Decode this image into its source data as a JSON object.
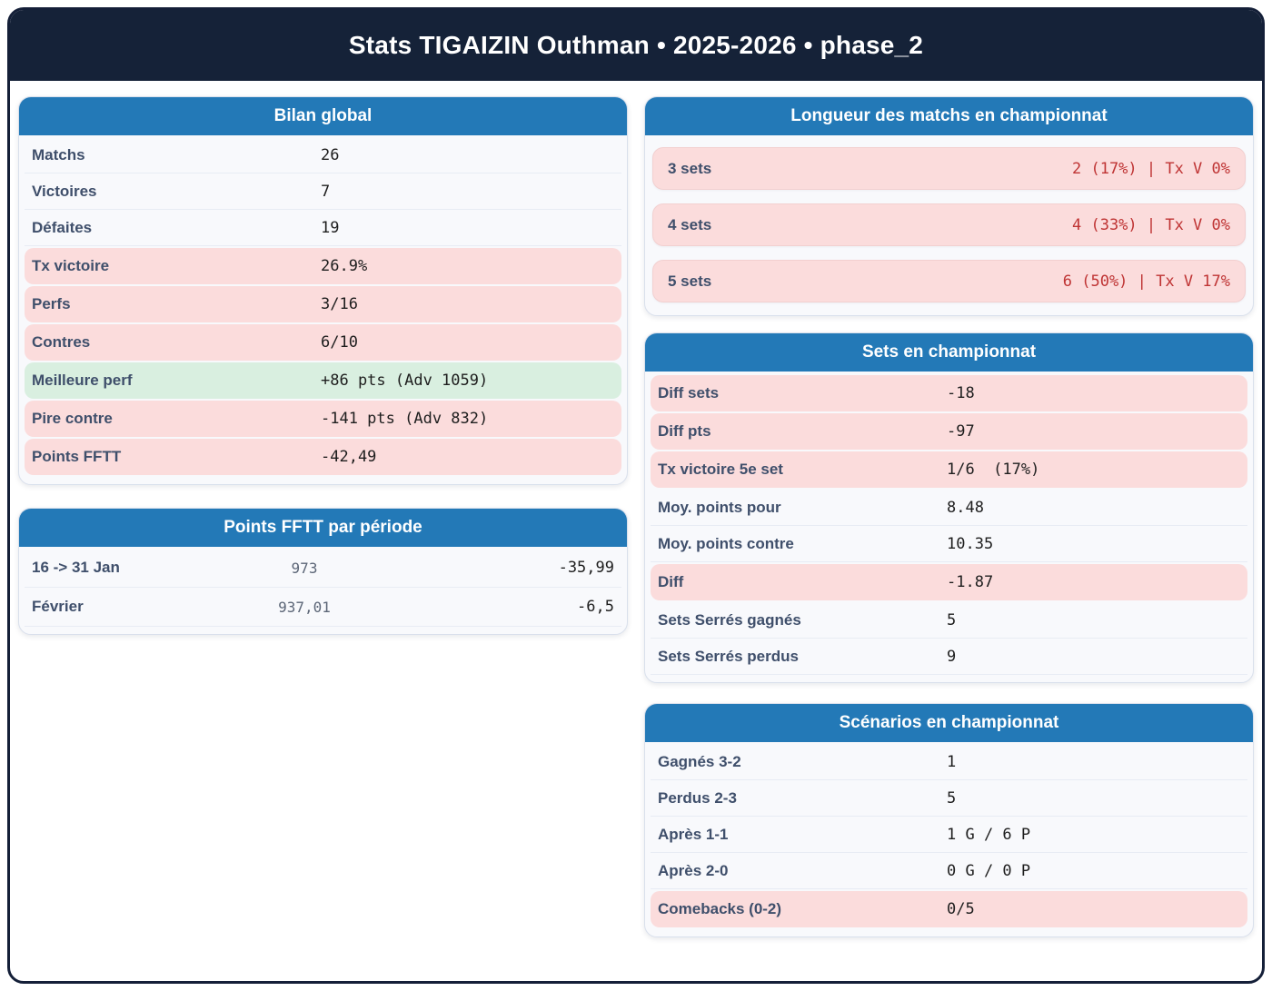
{
  "header": {
    "title": "Stats TIGAIZIN Outhman • 2025-2026 • phase_2"
  },
  "colors": {
    "header_navy": "#152238",
    "card_header_blue": "#2379b7",
    "negative_row_pink": "#fbdcdc",
    "positive_row_green": "#d9efe0",
    "negative_value_red": "#bf3434"
  },
  "cards": {
    "bilan": {
      "title": "Bilan global",
      "rows": [
        {
          "label": "Matchs",
          "value": "26",
          "tone": "plain"
        },
        {
          "label": "Victoires",
          "value": "7",
          "tone": "plain"
        },
        {
          "label": "Défaites",
          "value": "19",
          "tone": "plain"
        },
        {
          "label": "Tx victoire",
          "value": "26.9%",
          "tone": "bad"
        },
        {
          "label": "Perfs",
          "value": "3/16",
          "tone": "bad"
        },
        {
          "label": "Contres",
          "value": "6/10",
          "tone": "bad"
        },
        {
          "label": "Meilleure perf",
          "value": "+86 pts (Adv 1059)",
          "tone": "good"
        },
        {
          "label": "Pire contre",
          "value": "-141 pts (Adv 832)",
          "tone": "bad"
        },
        {
          "label": "Points FFTT",
          "value": "-42,49",
          "tone": "bad"
        }
      ]
    },
    "periodes": {
      "title": "Points FFTT par période",
      "rows": [
        {
          "label": "16 -> 31 Jan",
          "mid": "973",
          "value": "-35,99"
        },
        {
          "label": "Février",
          "mid": "937,01",
          "value": "-6,5"
        }
      ]
    },
    "longueur": {
      "title": "Longueur des matchs en championnat",
      "rows": [
        {
          "label": "3 sets",
          "value": "2 (17%) | Tx V 0%"
        },
        {
          "label": "4 sets",
          "value": "4 (33%) | Tx V 0%"
        },
        {
          "label": "5 sets",
          "value": "6 (50%) | Tx V 17%"
        }
      ]
    },
    "sets": {
      "title": "Sets en championnat",
      "rows": [
        {
          "label": "Diff sets",
          "value": "-18",
          "tone": "bad"
        },
        {
          "label": "Diff pts",
          "value": "-97",
          "tone": "bad"
        },
        {
          "label": "Tx victoire 5e set",
          "value": "1/6  (17%)",
          "tone": "bad"
        },
        {
          "label": "Moy. points pour",
          "value": "8.48",
          "tone": "plain"
        },
        {
          "label": "Moy. points contre",
          "value": "10.35",
          "tone": "plain"
        },
        {
          "label": "Diff",
          "value": "-1.87",
          "tone": "bad"
        },
        {
          "label": "Sets Serrés gagnés",
          "value": "5",
          "tone": "plain"
        },
        {
          "label": "Sets Serrés perdus",
          "value": "9",
          "tone": "plain"
        }
      ]
    },
    "scenarios": {
      "title": "Scénarios en championnat",
      "rows": [
        {
          "label": "Gagnés 3-2",
          "value": "1",
          "tone": "plain"
        },
        {
          "label": "Perdus 2-3",
          "value": "5",
          "tone": "plain"
        },
        {
          "label": "Après 1-1",
          "value": "1 G / 6 P",
          "tone": "plain"
        },
        {
          "label": "Après 2-0",
          "value": "0 G / 0 P",
          "tone": "plain"
        },
        {
          "label": "Comebacks (0-2)",
          "value": "0/5",
          "tone": "bad"
        }
      ]
    }
  }
}
